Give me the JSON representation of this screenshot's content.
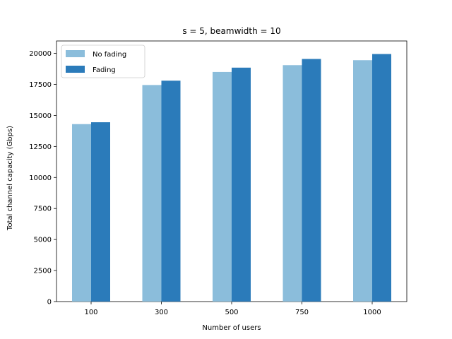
{
  "chart_data": {
    "type": "bar",
    "title": "s = 5, beamwidth = 10",
    "xlabel": "Number of users",
    "ylabel": "Total channel capacity (Gbps)",
    "categories": [
      "100",
      "300",
      "500",
      "750",
      "1000"
    ],
    "series": [
      {
        "name": "No fading",
        "color": "#8bbddb",
        "values": [
          14300,
          17450,
          18500,
          19050,
          19450
        ]
      },
      {
        "name": "Fading",
        "color": "#2b7bba",
        "values": [
          14450,
          17800,
          18850,
          19550,
          19950
        ]
      }
    ],
    "ylim": [
      0,
      21000
    ],
    "yticks": [
      0,
      2500,
      5000,
      7500,
      10000,
      12500,
      15000,
      17500,
      20000
    ],
    "grid": false,
    "legend_position": "upper-left"
  }
}
